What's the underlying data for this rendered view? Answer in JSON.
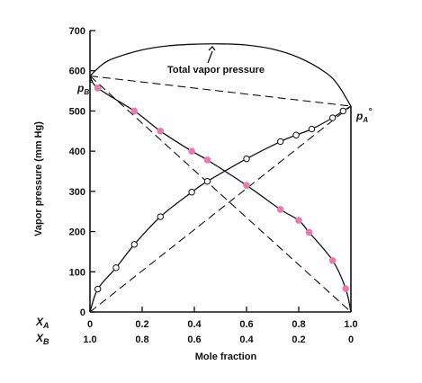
{
  "chart_data": {
    "type": "line",
    "title": "",
    "ylabel": "Vapor pressure (mm Hg)",
    "xlabel": "Mole fraction",
    "xlim": [
      0,
      1
    ],
    "ylim": [
      0,
      700
    ],
    "yticks": [
      "0",
      "100",
      "200",
      "300",
      "400",
      "500",
      "600",
      "700"
    ],
    "xa_label": "X",
    "xa_sub": "A",
    "xb_label": "X",
    "xb_sub": "B",
    "xa_ticks": [
      "0",
      "0.2",
      "0.4",
      "0.6",
      "0.8",
      "1.0"
    ],
    "xb_ticks": [
      "1.0",
      "0.8",
      "0.6",
      "0.4",
      "0.2",
      "0"
    ],
    "annotations": {
      "total": "Total vapor pressure",
      "pb": "p",
      "pb_sub": "B",
      "pb_sup": "°",
      "pa": "p",
      "pa_sub": "A",
      "pa_sup": "°"
    },
    "series": [
      {
        "key": "total",
        "x": [
          0,
          0.05,
          0.1,
          0.2,
          0.3,
          0.4,
          0.5,
          0.6,
          0.7,
          0.8,
          0.9,
          0.95,
          1.0
        ],
        "y": [
          587,
          617,
          633,
          652,
          662,
          666,
          667,
          664,
          654,
          633,
          597,
          565,
          512
        ]
      },
      {
        "key": "pA",
        "x": [
          0,
          0.03,
          0.1,
          0.17,
          0.27,
          0.39,
          0.45,
          0.6,
          0.73,
          0.79,
          0.85,
          0.93,
          0.97,
          1.0
        ],
        "y": [
          0,
          57,
          110,
          168,
          237,
          298,
          325,
          381,
          424,
          440,
          455,
          483,
          500,
          512
        ]
      },
      {
        "key": "pB",
        "x": [
          0,
          0.03,
          0.17,
          0.27,
          0.39,
          0.45,
          0.6,
          0.73,
          0.8,
          0.84,
          0.93,
          0.98,
          1.0
        ],
        "y": [
          587,
          557,
          500,
          450,
          400,
          378,
          315,
          255,
          228,
          198,
          128,
          58,
          0
        ]
      }
    ],
    "pB_markers": {
      "x": [
        0.03,
        0.17,
        0.27,
        0.39,
        0.45,
        0.6,
        0.73,
        0.8,
        0.84,
        0.93,
        0.98
      ],
      "y": [
        557,
        500,
        450,
        400,
        378,
        315,
        255,
        228,
        198,
        128,
        58
      ],
      "color": "#e87ab0"
    },
    "pA_markers": {
      "x": [
        0.03,
        0.1,
        0.17,
        0.27,
        0.39,
        0.45,
        0.6,
        0.73,
        0.79,
        0.85,
        0.93,
        0.97
      ],
      "y": [
        57,
        110,
        168,
        237,
        298,
        325,
        381,
        424,
        440,
        455,
        483,
        500
      ],
      "color": "#ffffff"
    },
    "raoult_lines": [
      {
        "key": "pB-ideal",
        "x": [
          0,
          1
        ],
        "y": [
          587,
          0
        ]
      },
      {
        "key": "pA-ideal",
        "x": [
          0,
          1
        ],
        "y": [
          0,
          512
        ]
      },
      {
        "key": "total-ideal",
        "x": [
          0,
          1
        ],
        "y": [
          587,
          512
        ]
      }
    ],
    "grid": false
  }
}
